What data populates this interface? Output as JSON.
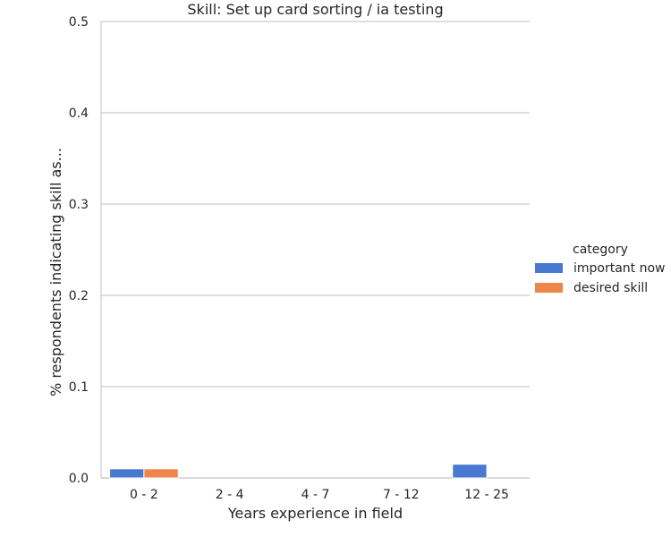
{
  "chart_data": {
    "type": "bar",
    "title": "Skill: Set up card sorting / ia testing",
    "xlabel": "Years experience in field",
    "ylabel": "% respondents indicating skill as...",
    "categories": [
      "0 - 2",
      "2 - 4",
      "4 - 7",
      "7 - 12",
      "12 - 25"
    ],
    "series": [
      {
        "name": "important now",
        "color": "#4878d0",
        "values": [
          0.01,
          0,
          0,
          0,
          0.015
        ]
      },
      {
        "name": "desired skill",
        "color": "#ee854a",
        "values": [
          0.01,
          0,
          0,
          0,
          0
        ]
      }
    ],
    "ylim": [
      0,
      0.5
    ],
    "yticks": [
      "0.0",
      "0.1",
      "0.2",
      "0.3",
      "0.4",
      "0.5"
    ],
    "grid": "horizontal",
    "legend": {
      "title": "category",
      "position": "right"
    },
    "colors": {
      "grid": "#cccccc",
      "axis": "#cccccc",
      "text": "#262626"
    }
  }
}
